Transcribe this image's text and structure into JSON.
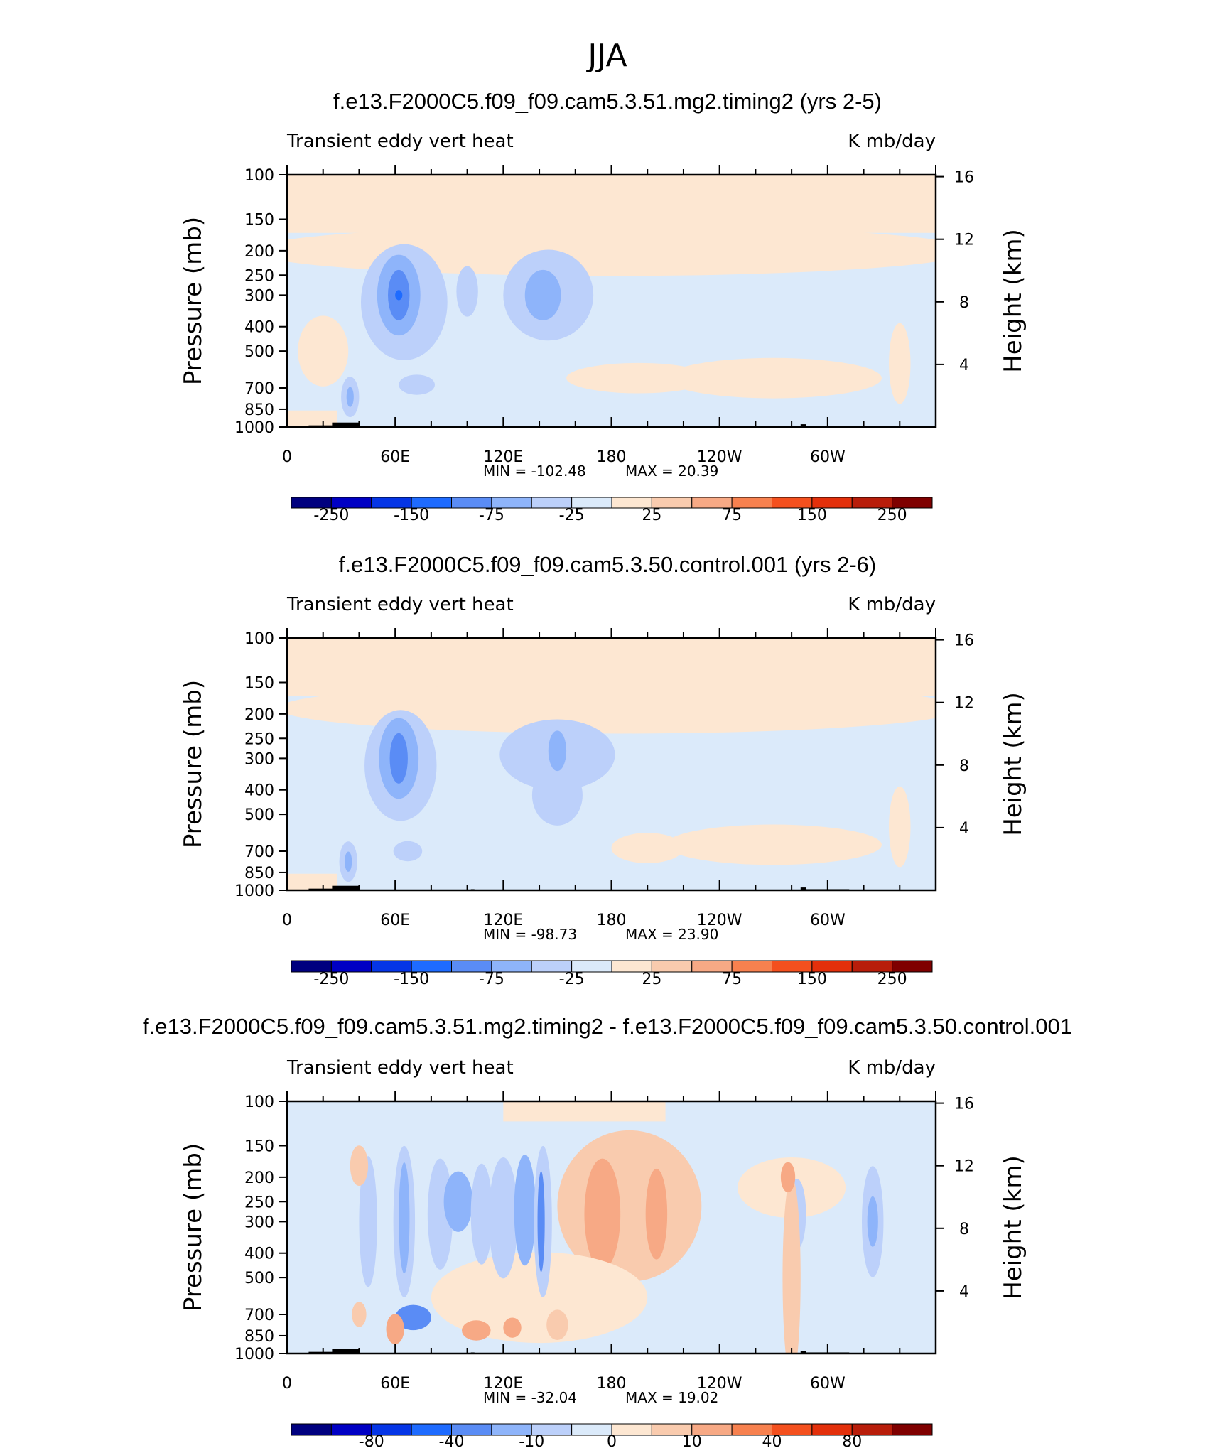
{
  "figure": {
    "title": "JJA"
  },
  "chart_data": [
    {
      "type": "heatmap",
      "title": "f.e13.F2000C5.f09_f09.cam5.3.51.mg2.timing2 (yrs 2-5)",
      "left_label": "Transient eddy vert heat",
      "right_label": "K mb/day",
      "ylabel": "Pressure (mb)",
      "ylabel_right": "Height (km)",
      "xticks": [
        "0",
        "60E",
        "120E",
        "180",
        "120W",
        "60W"
      ],
      "yticks": [
        "100",
        "150",
        "200",
        "250",
        "300",
        "400",
        "500",
        "700",
        "850",
        "1000"
      ],
      "yticks_right": [
        "16",
        "12",
        "8",
        "4"
      ],
      "min_label": "MIN = -102.48",
      "max_label": "MAX = 20.39",
      "colorbar_labels": [
        "-250",
        "-150",
        "-75",
        "-25",
        "25",
        "75",
        "150",
        "250"
      ]
    },
    {
      "type": "heatmap",
      "title": "f.e13.F2000C5.f09_f09.cam5.3.50.control.001 (yrs 2-6)",
      "left_label": "Transient eddy vert heat",
      "right_label": "K mb/day",
      "ylabel": "Pressure (mb)",
      "ylabel_right": "Height (km)",
      "xticks": [
        "0",
        "60E",
        "120E",
        "180",
        "120W",
        "60W"
      ],
      "yticks": [
        "100",
        "150",
        "200",
        "250",
        "300",
        "400",
        "500",
        "700",
        "850",
        "1000"
      ],
      "yticks_right": [
        "16",
        "12",
        "8",
        "4"
      ],
      "min_label": "MIN = -98.73",
      "max_label": "MAX = 23.90",
      "colorbar_labels": [
        "-250",
        "-150",
        "-75",
        "-25",
        "25",
        "75",
        "150",
        "250"
      ]
    },
    {
      "type": "heatmap",
      "title": "f.e13.F2000C5.f09_f09.cam5.3.51.mg2.timing2 - f.e13.F2000C5.f09_f09.cam5.3.50.control.001",
      "left_label": "Transient eddy vert heat",
      "right_label": "K mb/day",
      "ylabel": "Pressure (mb)",
      "ylabel_right": "Height (km)",
      "xticks": [
        "0",
        "60E",
        "120E",
        "180",
        "120W",
        "60W"
      ],
      "yticks": [
        "100",
        "150",
        "200",
        "250",
        "300",
        "400",
        "500",
        "700",
        "850",
        "1000"
      ],
      "yticks_right": [
        "16",
        "12",
        "8",
        "4"
      ],
      "min_label": "MIN = -32.04",
      "max_label": "MAX = 19.02",
      "colorbar_labels": [
        "-80",
        "-40",
        "-10",
        "0",
        "10",
        "40",
        "80"
      ]
    }
  ],
  "colors": {
    "scale": [
      "#00007f",
      "#0000c4",
      "#0535e6",
      "#1e6bff",
      "#5a8cf5",
      "#8eb4fa",
      "#bcd0fa",
      "#dbeafa",
      "#fde7d2",
      "#f9cbae",
      "#f7a985",
      "#f7814f",
      "#f4501e",
      "#e3300b",
      "#b81d0a",
      "#7f0000"
    ],
    "background_negative": "#dbeafa",
    "background_positive": "#fde7d2",
    "topography": "#000000"
  }
}
